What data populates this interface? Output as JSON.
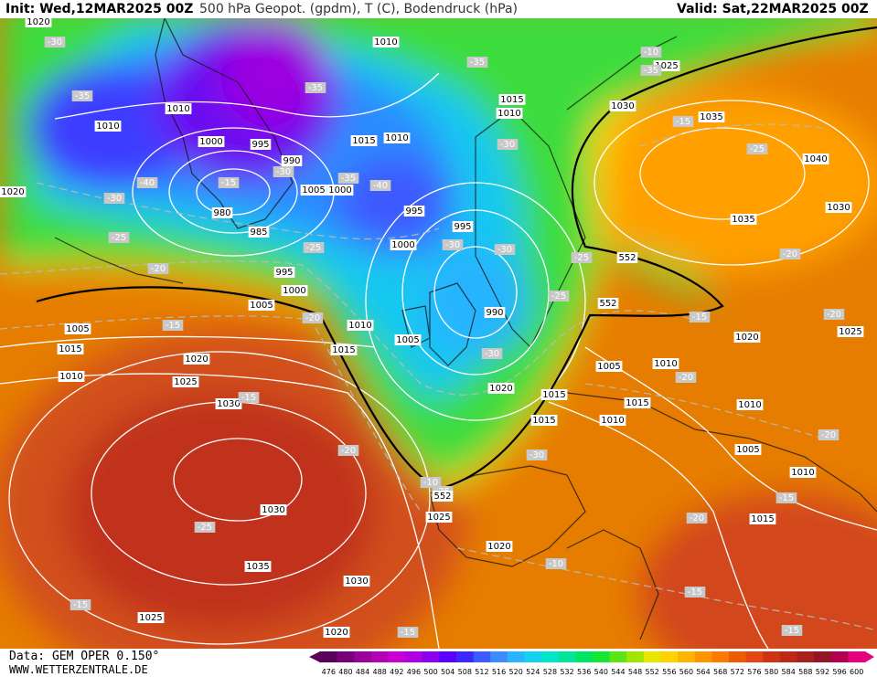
{
  "header": {
    "init": "Init: Wed,12MAR2025 00Z",
    "title": "500 hPa Geopot. (gpdm), T (C), Bodendruck (hPa)",
    "valid": "Valid: Sat,22MAR2025 00Z"
  },
  "footer": {
    "source": "Data: GEM OPER 0.150°",
    "website": "WWW.WETTERZENTRALE.DE"
  },
  "legend": {
    "values": [
      "476",
      "480",
      "484",
      "488",
      "492",
      "496",
      "500",
      "504",
      "508",
      "512",
      "516",
      "520",
      "524",
      "528",
      "532",
      "536",
      "540",
      "544",
      "548",
      "552",
      "556",
      "560",
      "564",
      "568",
      "572",
      "576",
      "580",
      "584",
      "588",
      "592",
      "596",
      "600"
    ],
    "colors": [
      "#5a005a",
      "#7a007a",
      "#9a009a",
      "#b400b4",
      "#c800d2",
      "#b000e6",
      "#8c00f0",
      "#5a00ff",
      "#3c28ff",
      "#3c5aff",
      "#3c8cff",
      "#28b4ff",
      "#14d2f0",
      "#00e6c8",
      "#00e696",
      "#00e664",
      "#14e632",
      "#5ae614",
      "#a0e600",
      "#e6e600",
      "#ffd200",
      "#ffb400",
      "#ff9600",
      "#ff7800",
      "#f05a00",
      "#e64614",
      "#d23214",
      "#be2814",
      "#aa1e1e",
      "#961428",
      "#b40050",
      "#e6007c"
    ]
  },
  "map_labels": {
    "isobars": [
      "1020",
      "1010",
      "1010",
      "1010",
      "1000",
      "995",
      "990",
      "980",
      "985",
      "995",
      "1000",
      "1005",
      "1015",
      "1010",
      "995",
      "1000",
      "990",
      "995",
      "1000",
      "1005",
      "1005",
      "1010",
      "1005",
      "1015",
      "1025",
      "1020",
      "1030",
      "1030",
      "1035",
      "1040",
      "1035",
      "1030",
      "1025",
      "1020",
      "1010",
      "1005",
      "1015",
      "1015",
      "1020",
      "1015",
      "1010",
      "1010",
      "1005",
      "1010",
      "1015",
      "1020",
      "1025",
      "1030",
      "1035",
      "1030",
      "1025",
      "1020",
      "1015",
      "1010",
      "1025",
      "1020",
      "1015",
      "1010"
    ],
    "temperatures": [
      "-30",
      "-35",
      "-35",
      "-40",
      "-35",
      "-35",
      "-35",
      "-30",
      "-40",
      "-30",
      "-30",
      "-25",
      "-25",
      "-20",
      "-25",
      "-30",
      "-30",
      "-25",
      "-30",
      "-25",
      "-20",
      "-15",
      "-20",
      "-20",
      "-20",
      "-30",
      "-25",
      "-15",
      "-20",
      "-20",
      "-25",
      "-15",
      "-15",
      "-20",
      "-15",
      "-15",
      "-10",
      "-15",
      "-10",
      "-15",
      "-10",
      "-15",
      "-15"
    ],
    "geopotential": [
      "552",
      "552",
      "552"
    ]
  }
}
